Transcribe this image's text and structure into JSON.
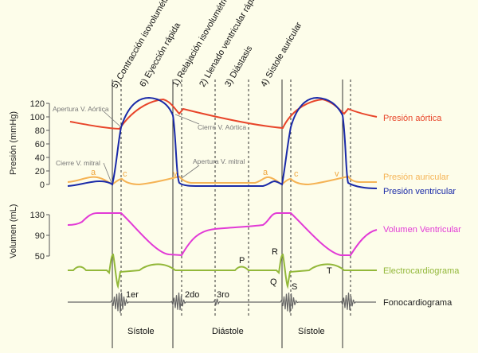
{
  "phases": [
    "5) Contracción isovolumétrica",
    "6) Eyección rápida",
    "1) Relajación isovolumétrica",
    "2) Llenado ventricular rápido",
    "3) Diástasis",
    "4) Sístole auricular"
  ],
  "axes": {
    "pressure_label": "Presión (mmHg)",
    "pressure_ticks": [
      "120",
      "100",
      "80",
      "60",
      "40",
      "20",
      "0"
    ],
    "volume_label": "Volumen (mL)",
    "volume_ticks": [
      "130",
      "90",
      "50"
    ]
  },
  "annotations": {
    "aortic_open": "Apertura V. Aórtica",
    "aortic_close": "Cierre V. Aórtica",
    "mitral_close": "Cierre V. mitral",
    "mitral_open": "Apertura V. mitral"
  },
  "wave_letters": {
    "a": "a",
    "c": "c",
    "v": "v",
    "P": "P",
    "R": "R",
    "Q": "Q",
    "S": "S",
    "T": "T"
  },
  "heart_sounds": [
    "1er",
    "2do",
    "3ro"
  ],
  "legend": [
    {
      "label": "Presión aórtica",
      "color": "#e8452a"
    },
    {
      "label": "Presión auricular",
      "color": "#f5b355"
    },
    {
      "label": "Presión ventricular",
      "color": "#1a2aa8"
    },
    {
      "label": "Volumen Ventricular",
      "color": "#e23ad6"
    },
    {
      "label": "Electrocardiograma",
      "color": "#93b83a"
    },
    {
      "label": "Fonocardiograma",
      "color": "#222222"
    }
  ],
  "periods": [
    "Sístole",
    "Diástole",
    "Sístole"
  ]
}
